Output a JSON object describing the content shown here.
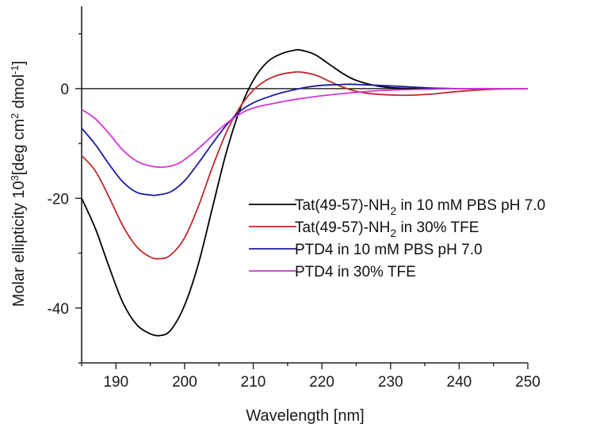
{
  "chart_data": {
    "type": "line",
    "title": "",
    "xlabel": "Wavelength [nm]",
    "ylabel_parts": {
      "prefix": "Molar ellipticity  10",
      "prefix_sup": "3",
      "mid": "[deg cm",
      "mid_sup": "2",
      "suffix": " dmol",
      "suffix_sup": "-1",
      "end": "]"
    },
    "xlim": [
      185,
      250
    ],
    "ylim": [
      -50,
      15
    ],
    "xticks": [
      190,
      200,
      210,
      220,
      230,
      240,
      250
    ],
    "yticks": [
      0,
      -20,
      -40
    ],
    "zero_line": true,
    "legend_position": "center-right",
    "series": [
      {
        "name": "Tat(49-57)-NH2 in 10 mM PBS pH 7.0",
        "label": {
          "before": "Tat(49-57)-NH",
          "sub": "2",
          "after": " in 10 mM PBS pH 7.0"
        },
        "color": "#000000",
        "x": [
          185,
          187,
          189,
          191,
          193,
          195,
          196.5,
          198,
          200,
          202,
          204,
          206,
          208,
          210,
          212,
          214,
          216,
          217,
          219,
          221,
          223,
          225,
          228,
          231,
          235,
          240,
          245,
          250
        ],
        "y": [
          -20,
          -25.5,
          -32.5,
          -39,
          -43,
          -44.7,
          -45,
          -44,
          -39.5,
          -32,
          -22,
          -12,
          -4,
          1.5,
          4.8,
          6.3,
          7,
          7,
          6.2,
          4.5,
          2.8,
          1.5,
          0.5,
          0.1,
          0,
          0,
          0,
          0
        ]
      },
      {
        "name": "Tat(49-57)-NH2 in 30% TFE",
        "label": {
          "before": "Tat(49-57)-NH",
          "sub": "2",
          "after": " in 30% TFE"
        },
        "color": "#c0262d",
        "x": [
          185,
          187,
          189,
          191,
          193,
          195,
          196.5,
          198,
          200,
          202,
          204,
          206,
          208,
          210,
          212,
          214,
          216,
          217,
          219,
          221,
          223,
          225,
          227,
          229,
          231,
          233,
          236,
          240,
          245,
          250
        ],
        "y": [
          -12.2,
          -15,
          -19.8,
          -25,
          -28.8,
          -30.7,
          -31,
          -30.3,
          -27.2,
          -21.5,
          -14.5,
          -8.2,
          -3.5,
          -0.3,
          1.6,
          2.6,
          3,
          3,
          2.5,
          1.4,
          0.3,
          -0.5,
          -0.9,
          -1.1,
          -1.2,
          -1.2,
          -1,
          -0.5,
          -0.1,
          0
        ]
      },
      {
        "name": "PTD4 in 10 mM PBS pH 7.0",
        "label": {
          "before": "PTD4 in 10 mM PBS pH 7.0",
          "sub": "",
          "after": ""
        },
        "color": "#1a1aa0",
        "x": [
          185,
          187,
          189,
          191,
          193,
          195,
          196,
          198,
          200,
          202,
          204,
          206,
          208,
          210,
          212,
          214,
          216,
          218,
          220,
          222,
          224,
          226,
          228,
          230,
          233,
          236,
          240,
          245,
          250
        ],
        "y": [
          -7.2,
          -10.2,
          -13.8,
          -17,
          -18.9,
          -19.4,
          -19.4,
          -18.8,
          -16.8,
          -13.6,
          -10.1,
          -6.8,
          -4.2,
          -2.6,
          -1.6,
          -0.8,
          -0.2,
          0.3,
          0.6,
          0.7,
          0.8,
          0.7,
          0.6,
          0.5,
          0.3,
          0.1,
          0,
          0,
          0
        ]
      },
      {
        "name": "PTD4 in 30% TFE",
        "label": {
          "before": "PTD4 in 30% TFE",
          "sub": "",
          "after": ""
        },
        "color": "#d633d6",
        "x": [
          185,
          187,
          189,
          191,
          193,
          195,
          197,
          199,
          201,
          203,
          205,
          207,
          209,
          211,
          213,
          215,
          217,
          220,
          224,
          228,
          232,
          236,
          240,
          245,
          250
        ],
        "y": [
          -3.8,
          -5.5,
          -8.2,
          -11.2,
          -13.2,
          -14.1,
          -14.3,
          -13.7,
          -12,
          -9.8,
          -7.5,
          -5.5,
          -4,
          -3.2,
          -2.7,
          -2.2,
          -1.8,
          -1.3,
          -0.8,
          -0.4,
          -0.2,
          -0.1,
          0,
          0,
          0
        ]
      }
    ]
  }
}
